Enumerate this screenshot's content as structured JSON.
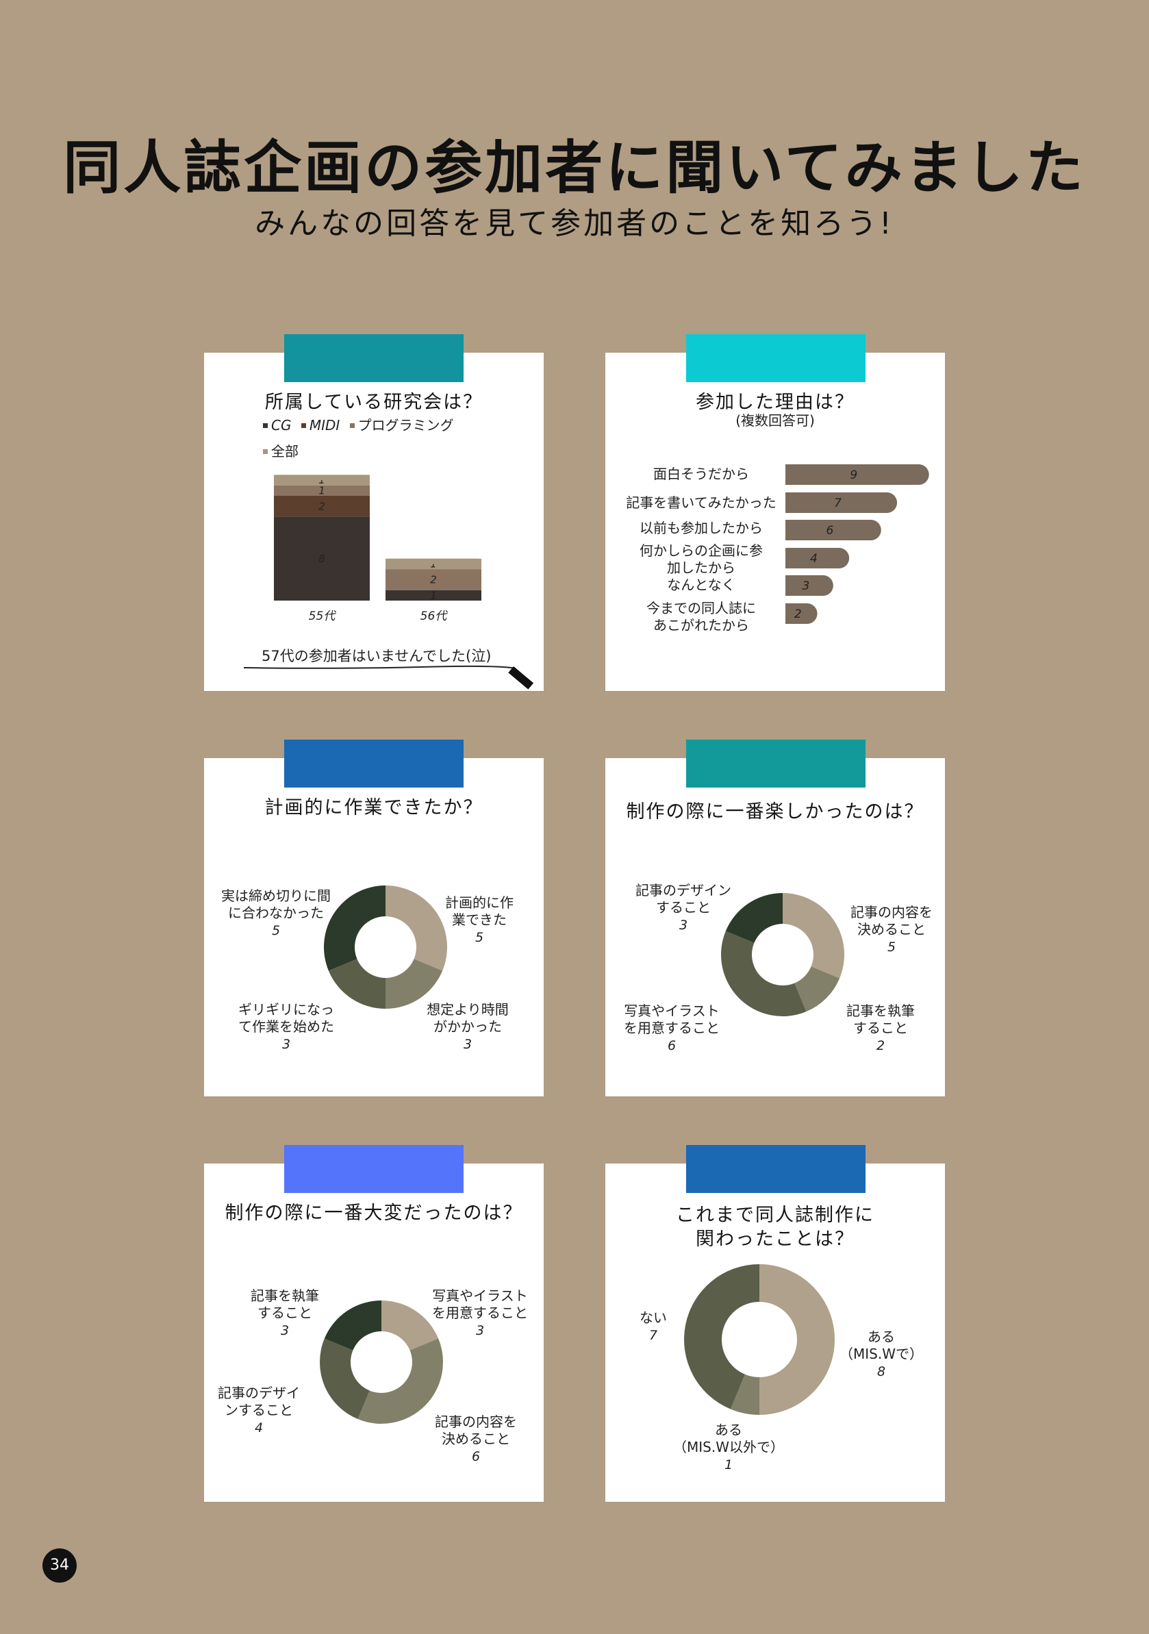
{
  "page": {
    "title": "同人誌企画の参加者に聞いてみました",
    "subtitle": "みんなの回答を見て参加者のことを知ろう!",
    "page_number": "34"
  },
  "colors": {
    "background": "#b09d83",
    "tape_teal": "#12939e",
    "tape_cyan": "#0ccad1",
    "tape_blue": "#1b69b2",
    "tape_teal2": "#129a9b",
    "tape_periwinkle": "#5474fb",
    "tape_blue2": "#1b69b2",
    "stack_cg": "#3a3330",
    "stack_midi": "#5c3f2c",
    "stack_prog": "#8a7360",
    "stack_all": "#a8977f",
    "bar_brown": "#7a6b5c",
    "donut_tan": "#afa18b",
    "donut_olive_light": "#83806a",
    "donut_olive": "#5b5e49",
    "donut_dark": "#2b3a2a"
  },
  "cards": {
    "c1": {
      "title": "所属している研究会は？",
      "legend": [
        {
          "label": "CG",
          "italic": true
        },
        {
          "label": "MIDI",
          "italic": true
        },
        {
          "label": "プログラミング",
          "italic": false
        },
        {
          "label": "全部",
          "italic": false
        }
      ],
      "note": "57代の参加者はいませんでした(泣)"
    },
    "c2": {
      "title": "参加した理由は？",
      "subtitle": "(複数回答可)"
    },
    "c3": {
      "title": "計画的に作業できたか？"
    },
    "c4": {
      "title": "制作の際に一番楽しかったのは？"
    },
    "c5": {
      "title": "制作の際に一番大変だったのは？"
    },
    "c6": {
      "title_line1": "これまで同人誌制作に",
      "title_line2": "関わったことは？"
    }
  },
  "chart_data": [
    {
      "id": "c1",
      "type": "bar",
      "stacked": true,
      "title": "所属している研究会は？",
      "categories": [
        "55代",
        "56代"
      ],
      "series": [
        {
          "name": "CG",
          "values": [
            8,
            1
          ]
        },
        {
          "name": "MIDI",
          "values": [
            2,
            0
          ]
        },
        {
          "name": "プログラミング",
          "values": [
            1,
            2
          ]
        },
        {
          "name": "全部",
          "values": [
            1,
            1
          ]
        }
      ],
      "legend": "top-left"
    },
    {
      "id": "c2",
      "type": "bar",
      "orientation": "horizontal",
      "title": "参加した理由は？",
      "subtitle": "(複数回答可)",
      "categories": [
        [
          "面白そうだから"
        ],
        [
          "記事を書いてみたかった"
        ],
        [
          "以前も参加したから"
        ],
        [
          "何かしらの企画に参",
          "加したから"
        ],
        [
          "なんとなく"
        ],
        [
          "今までの同人誌に",
          "あこがれたから"
        ]
      ],
      "values": [
        9,
        7,
        6,
        4,
        3,
        2
      ]
    },
    {
      "id": "c3",
      "type": "pie",
      "donut": true,
      "title": "計画的に作業できたか？",
      "slices": [
        {
          "label": [
            "計画的に作",
            "業できた"
          ],
          "value": 5
        },
        {
          "label": [
            "想定より時間",
            "がかかった"
          ],
          "value": 3
        },
        {
          "label": [
            "ギリギリになっ",
            "て作業を始めた"
          ],
          "value": 3
        },
        {
          "label": [
            "実は締め切りに間",
            "に合わなかった"
          ],
          "value": 5
        }
      ]
    },
    {
      "id": "c4",
      "type": "pie",
      "donut": true,
      "title": "制作の際に一番楽しかったのは？",
      "slices": [
        {
          "label": [
            "記事の内容を",
            "決めること"
          ],
          "value": 5
        },
        {
          "label": [
            "記事を執筆",
            "すること"
          ],
          "value": 2
        },
        {
          "label": [
            "写真やイラスト",
            "を用意すること"
          ],
          "value": 6
        },
        {
          "label": [
            "記事のデザイン",
            "すること"
          ],
          "value": 3
        }
      ]
    },
    {
      "id": "c5",
      "type": "pie",
      "donut": true,
      "title": "制作の際に一番大変だったのは？",
      "slices": [
        {
          "label": [
            "写真やイラスト",
            "を用意すること"
          ],
          "value": 3
        },
        {
          "label": [
            "記事の内容を",
            "決めること"
          ],
          "value": 6
        },
        {
          "label": [
            "記事のデザイ",
            "ンすること"
          ],
          "value": 4
        },
        {
          "label": [
            "記事を執筆",
            "すること"
          ],
          "value": 3
        }
      ]
    },
    {
      "id": "c6",
      "type": "pie",
      "donut": true,
      "title": "これまで同人誌制作に関わったことは？",
      "slices": [
        {
          "label": [
            "ある",
            "（MIS.Wで）"
          ],
          "value": 8
        },
        {
          "label": [
            "ある",
            "（MIS.W以外で）"
          ],
          "value": 1
        },
        {
          "label": [
            "ない"
          ],
          "value": 7
        }
      ]
    }
  ]
}
